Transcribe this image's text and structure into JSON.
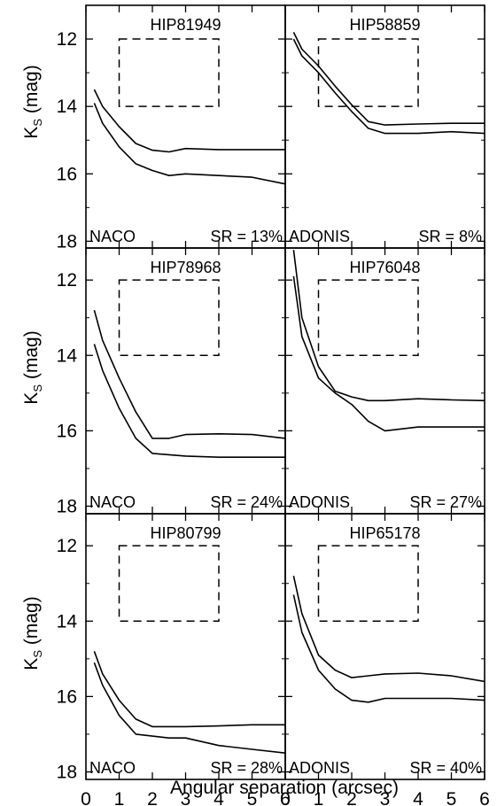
{
  "figure": {
    "xlabel": "Angular separation (arcsec)",
    "ylabel_main": "K",
    "ylabel_sub": "S",
    "ylabel_unit": "(mag)"
  },
  "chart_data": [
    {
      "type": "line",
      "title": "HIP81949",
      "instrument": "NACO",
      "strehl": "SR = 13%",
      "xlim": [
        0,
        6
      ],
      "ylim": [
        18,
        11
      ],
      "y_inverted": true,
      "xticks": [
        0,
        1,
        2,
        3,
        4,
        5,
        6
      ],
      "yticks": [
        12,
        14,
        16,
        18
      ],
      "box": {
        "x": [
          1,
          4
        ],
        "y": [
          12,
          14
        ]
      },
      "series": [
        {
          "points": [
            [
              0.25,
              13.5
            ],
            [
              0.5,
              14.0
            ],
            [
              1.0,
              14.6
            ],
            [
              1.5,
              15.1
            ],
            [
              2.0,
              15.3
            ],
            [
              2.5,
              15.35
            ],
            [
              3.0,
              15.25
            ],
            [
              4.0,
              15.28
            ],
            [
              5.0,
              15.28
            ],
            [
              6.0,
              15.28
            ]
          ]
        },
        {
          "points": [
            [
              0.25,
              13.9
            ],
            [
              0.5,
              14.5
            ],
            [
              1.0,
              15.2
            ],
            [
              1.5,
              15.7
            ],
            [
              2.0,
              15.9
            ],
            [
              2.5,
              16.05
            ],
            [
              3.0,
              16.0
            ],
            [
              4.0,
              16.05
            ],
            [
              5.0,
              16.1
            ],
            [
              6.0,
              16.3
            ]
          ]
        }
      ]
    },
    {
      "type": "line",
      "title": "HIP58859",
      "instrument": "ADONIS",
      "strehl": "SR = 8%",
      "xlim": [
        0,
        6
      ],
      "ylim": [
        18,
        11
      ],
      "y_inverted": true,
      "xticks": [
        0,
        1,
        2,
        3,
        4,
        5,
        6
      ],
      "yticks": [
        12,
        14,
        16,
        18
      ],
      "box": {
        "x": [
          1,
          4
        ],
        "y": [
          12,
          14
        ]
      },
      "series": [
        {
          "points": [
            [
              0.25,
              11.8
            ],
            [
              0.5,
              12.3
            ],
            [
              1.0,
              12.8
            ],
            [
              1.5,
              13.4
            ],
            [
              2.0,
              13.95
            ],
            [
              2.5,
              14.45
            ],
            [
              3.0,
              14.55
            ],
            [
              4.0,
              14.52
            ],
            [
              5.0,
              14.5
            ],
            [
              6.0,
              14.5
            ]
          ]
        },
        {
          "points": [
            [
              0.25,
              12.0
            ],
            [
              0.5,
              12.5
            ],
            [
              1.0,
              13.0
            ],
            [
              1.5,
              13.6
            ],
            [
              2.0,
              14.15
            ],
            [
              2.5,
              14.65
            ],
            [
              3.0,
              14.8
            ],
            [
              4.0,
              14.8
            ],
            [
              5.0,
              14.75
            ],
            [
              6.0,
              14.8
            ]
          ]
        }
      ]
    },
    {
      "type": "line",
      "title": "HIP78968",
      "instrument": "NACO",
      "strehl": "SR = 24%",
      "xlim": [
        0,
        6
      ],
      "ylim": [
        18,
        11
      ],
      "y_inverted": true,
      "xticks": [
        0,
        1,
        2,
        3,
        4,
        5,
        6
      ],
      "yticks": [
        12,
        14,
        16,
        18
      ],
      "box": {
        "x": [
          1,
          4
        ],
        "y": [
          12,
          14
        ]
      },
      "series": [
        {
          "points": [
            [
              0.25,
              12.8
            ],
            [
              0.5,
              13.6
            ],
            [
              1.0,
              14.6
            ],
            [
              1.5,
              15.5
            ],
            [
              2.0,
              16.2
            ],
            [
              2.5,
              16.2
            ],
            [
              3.0,
              16.1
            ],
            [
              4.0,
              16.08
            ],
            [
              5.0,
              16.1
            ],
            [
              6.0,
              16.2
            ]
          ]
        },
        {
          "points": [
            [
              0.25,
              13.7
            ],
            [
              0.5,
              14.4
            ],
            [
              1.0,
              15.4
            ],
            [
              1.5,
              16.2
            ],
            [
              2.0,
              16.6
            ],
            [
              3.0,
              16.67
            ],
            [
              4.0,
              16.7
            ],
            [
              5.0,
              16.7
            ],
            [
              6.0,
              16.7
            ]
          ]
        }
      ]
    },
    {
      "type": "line",
      "title": "HIP76048",
      "instrument": "ADONIS",
      "strehl": "SR = 27%",
      "xlim": [
        0,
        6
      ],
      "ylim": [
        18,
        11
      ],
      "y_inverted": true,
      "xticks": [
        0,
        1,
        2,
        3,
        4,
        5,
        6
      ],
      "yticks": [
        12,
        14,
        16,
        18
      ],
      "box": {
        "x": [
          1,
          4
        ],
        "y": [
          12,
          14
        ]
      },
      "series": [
        {
          "points": [
            [
              0.25,
              11.2
            ],
            [
              0.5,
              13.0
            ],
            [
              1.0,
              14.3
            ],
            [
              1.5,
              14.95
            ],
            [
              2.0,
              15.1
            ],
            [
              2.5,
              15.2
            ],
            [
              3.0,
              15.2
            ],
            [
              4.0,
              15.15
            ],
            [
              5.0,
              15.18
            ],
            [
              6.0,
              15.2
            ]
          ]
        },
        {
          "points": [
            [
              0.25,
              11.9
            ],
            [
              0.5,
              13.5
            ],
            [
              1.0,
              14.6
            ],
            [
              1.5,
              15.0
            ],
            [
              2.0,
              15.3
            ],
            [
              2.5,
              15.75
            ],
            [
              3.0,
              16.0
            ],
            [
              4.0,
              15.9
            ],
            [
              5.0,
              15.9
            ],
            [
              6.0,
              15.9
            ]
          ]
        }
      ]
    },
    {
      "type": "line",
      "title": "HIP80799",
      "instrument": "NACO",
      "strehl": "SR = 28%",
      "xlim": [
        0,
        6
      ],
      "ylim": [
        18,
        11
      ],
      "y_inverted": true,
      "xticks": [
        0,
        1,
        2,
        3,
        4,
        5,
        6
      ],
      "yticks": [
        12,
        14,
        16,
        18
      ],
      "box": {
        "x": [
          1,
          4
        ],
        "y": [
          12,
          14
        ]
      },
      "series": [
        {
          "points": [
            [
              0.25,
              14.8
            ],
            [
              0.5,
              15.4
            ],
            [
              1.0,
              16.1
            ],
            [
              1.5,
              16.6
            ],
            [
              2.0,
              16.8
            ],
            [
              3.0,
              16.8
            ],
            [
              4.0,
              16.78
            ],
            [
              5.0,
              16.75
            ],
            [
              6.0,
              16.75
            ]
          ]
        },
        {
          "points": [
            [
              0.25,
              15.1
            ],
            [
              0.5,
              15.7
            ],
            [
              1.0,
              16.5
            ],
            [
              1.5,
              17.0
            ],
            [
              2.0,
              17.05
            ],
            [
              2.5,
              17.1
            ],
            [
              3.0,
              17.1
            ],
            [
              4.0,
              17.3
            ],
            [
              5.0,
              17.4
            ],
            [
              6.0,
              17.5
            ]
          ]
        }
      ]
    },
    {
      "type": "line",
      "title": "HIP65178",
      "instrument": "ADONIS",
      "strehl": "SR = 40%",
      "xlim": [
        0,
        6
      ],
      "ylim": [
        18,
        11
      ],
      "y_inverted": true,
      "xticks": [
        0,
        1,
        2,
        3,
        4,
        5,
        6
      ],
      "yticks": [
        12,
        14,
        16,
        18
      ],
      "box": {
        "x": [
          1,
          4
        ],
        "y": [
          12,
          14
        ]
      },
      "series": [
        {
          "points": [
            [
              0.25,
              12.8
            ],
            [
              0.5,
              13.8
            ],
            [
              1.0,
              14.9
            ],
            [
              1.5,
              15.3
            ],
            [
              2.0,
              15.5
            ],
            [
              2.5,
              15.45
            ],
            [
              3.0,
              15.4
            ],
            [
              4.0,
              15.38
            ],
            [
              5.0,
              15.45
            ],
            [
              6.0,
              15.6
            ]
          ]
        },
        {
          "points": [
            [
              0.25,
              13.3
            ],
            [
              0.5,
              14.3
            ],
            [
              1.0,
              15.3
            ],
            [
              1.5,
              15.8
            ],
            [
              2.0,
              16.1
            ],
            [
              2.5,
              16.15
            ],
            [
              3.0,
              16.05
            ],
            [
              4.0,
              16.05
            ],
            [
              5.0,
              16.05
            ],
            [
              6.0,
              16.1
            ]
          ]
        }
      ]
    }
  ]
}
